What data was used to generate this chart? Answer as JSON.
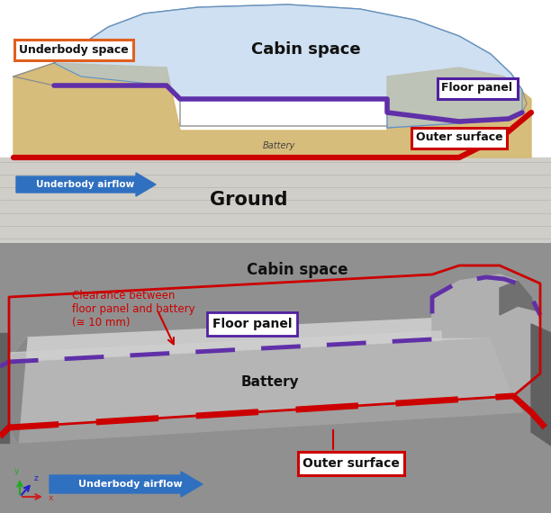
{
  "fig_width": 6.12,
  "fig_height": 5.7,
  "dpi": 100,
  "top": {
    "ground_color": "#d0cec8",
    "underbody_color": "#d4b870",
    "cabin_color": "#a8c8e8",
    "cabin_alpha": 0.55,
    "car_outline_color": "#808080",
    "floor_line_color": "#6030a8",
    "outer_line_color": "#cc0000",
    "arrow_color": "#3070c0",
    "underbody_box_ec": "#e06020",
    "floor_box_ec": "#5020a0",
    "outer_box_ec": "#cc0000",
    "battery_text": "Battery",
    "ground_text": "Ground",
    "cabin_text": "Cabin space",
    "underbody_text": "Underbody space",
    "floor_text": "Floor panel",
    "outer_text": "Outer surface",
    "airflow_text": "Underbody airflow"
  },
  "bot": {
    "bg_color": "#909090",
    "body_color": "#b8b8b8",
    "dark_color": "#707070",
    "floor_line_color": "#6030a8",
    "outer_line_color": "#cc0000",
    "arrow_color": "#3070c0",
    "cabin_text": "Cabin space",
    "battery_text": "Battery",
    "floor_text": "Floor panel",
    "outer_text": "Outer surface",
    "airflow_text": "Underbody airflow",
    "clearance_text": "Clearance between\nfloor panel and battery\n(≅ 10 mm)"
  }
}
